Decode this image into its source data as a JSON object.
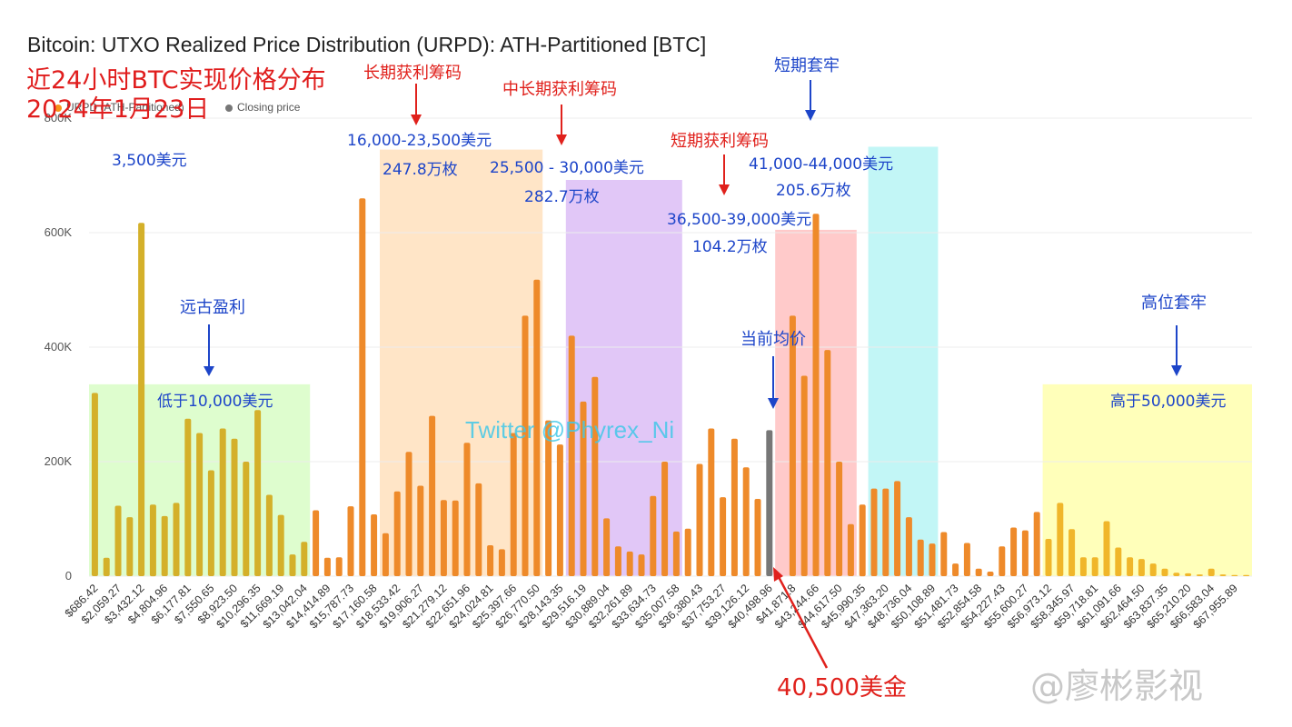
{
  "title": "Bitcoin: UTXO Realized Price Distribution (URPD): ATH-Partitioned [BTC]",
  "overlay_title_1": "近24小时BTC实现价格分布",
  "overlay_title_2": "2024年1月23日",
  "legend": [
    {
      "label": "URPD (ATH-Partitioned)",
      "color": "#f7931a"
    },
    {
      "label": "Closing price",
      "color": "#777777"
    }
  ],
  "annotations": {
    "ancient_value": "3,500美元",
    "ancient_profit_label": "远古盈利",
    "ancient_range": "低于10,000美元",
    "longterm_label": "长期获利筹码",
    "longterm_range": "16,000-23,500美元",
    "longterm_amount": "247.8万枚",
    "midlong_label": "中长期获利筹码",
    "midlong_range": "25,500 - 30,000美元",
    "midlong_amount": "282.7万枚",
    "shortterm_label": "短期获利筹码",
    "shortterm_range": "36,500-39,000美元",
    "shortterm_amount": "104.2万枚",
    "trapped_label": "短期套牢",
    "trapped_range": "41,000-44,000美元",
    "trapped_amount": "205.6万枚",
    "current_avg_label": "当前均价",
    "high_trapped_label": "高位套牢",
    "high_range": "高于50,000美元",
    "closing_price_label": "40,500美金"
  },
  "watermark": "Twitter @Phyrex_Ni",
  "logo_text": "@廖彬影视",
  "chart_data": {
    "type": "bar",
    "title": "Bitcoin: UTXO Realized Price Distribution (URPD): ATH-Partitioned [BTC]",
    "xlabel": "",
    "ylabel": "",
    "ylim": [
      0,
      800000
    ],
    "yticks": [
      0,
      200000,
      400000,
      600000,
      800000
    ],
    "ytick_labels": [
      "0",
      "200K",
      "400K",
      "600K",
      "800K"
    ],
    "xtick_labels": [
      "$686.42",
      "$2,059.27",
      "$3,432.12",
      "$4,804.96",
      "$6,177.81",
      "$7,550.65",
      "$8,923.50",
      "$10,296.35",
      "$11,669.19",
      "$13,042.04",
      "$14,414.89",
      "$15,787.73",
      "$17,160.58",
      "$18,533.42",
      "$19,906.27",
      "$21,279.12",
      "$22,651.96",
      "$24,024.81",
      "$25,397.66",
      "$26,770.50",
      "$28,143.35",
      "$29,516.19",
      "$30,889.04",
      "$32,261.89",
      "$33,634.73",
      "$35,007.58",
      "$36,380.43",
      "$37,753.27",
      "$39,126.12",
      "$40,498.96",
      "$41,871.8",
      "$43,244.66",
      "$44,617.50",
      "$45,990.35",
      "$47,363.20",
      "$48,736.04",
      "$50,108.89",
      "$51,481.73",
      "$52,854.58",
      "$54,227.43",
      "$55,600.27",
      "$56,973.12",
      "$58,345.97",
      "$59,718.81",
      "$61,091.66",
      "$62,464.50",
      "$63,837.35",
      "$65,210.20",
      "$66,583.04",
      "$67,955.89"
    ],
    "values": [
      320000,
      32000,
      123000,
      103000,
      617000,
      125000,
      105000,
      128000,
      275000,
      250000,
      185000,
      258000,
      240000,
      200000,
      290000,
      142000,
      107000,
      38000,
      60000,
      115000,
      32000,
      33000,
      122000,
      660000,
      108000,
      75000,
      148000,
      217000,
      158000,
      280000,
      133000,
      132000,
      233000,
      162000,
      54000,
      47000,
      250000,
      455000,
      518000,
      272000,
      230000,
      420000,
      305000,
      348000,
      101000,
      52000,
      43000,
      38000,
      140000,
      200000,
      78000,
      83000,
      196000,
      258000,
      138000,
      240000,
      190000,
      135000,
      255000,
      0,
      455000,
      350000,
      633000,
      395000,
      200000,
      91000,
      125000,
      153000,
      153000,
      166000,
      103000,
      64000,
      57000,
      77000,
      22000,
      58000,
      13000,
      8000,
      52000,
      85000,
      80000,
      112000,
      65000,
      128000,
      82000,
      33000,
      33000,
      96000,
      50000,
      33000,
      30000,
      22000,
      13000,
      6000,
      5000,
      3000,
      13000,
      3000,
      2000,
      2000
    ],
    "closing_price_index": 58,
    "series": [
      {
        "name": "URPD (ATH-Partitioned)",
        "color": "#f7931a"
      },
      {
        "name": "Closing price",
        "color": "#777777"
      }
    ],
    "colors": {
      "low": "#d4b02a",
      "mid": "#ee8a2a",
      "high": "#f0b62a",
      "closing": "#777777"
    },
    "highlight_regions": [
      {
        "name": "ancient",
        "from_index": 0,
        "to_index": 18,
        "ymax": 335000,
        "color": "#ccfcb4",
        "opacity": 0.65
      },
      {
        "name": "longterm",
        "from_index": 25,
        "to_index": 38,
        "ymax": 745000,
        "color": "#ffdcb4",
        "opacity": 0.75
      },
      {
        "name": "midlong",
        "from_index": 41,
        "to_index": 50,
        "ymax": 692000,
        "color": "#d1a9f2",
        "opacity": 0.65
      },
      {
        "name": "shortterm",
        "from_index": 59,
        "to_index": 65,
        "ymax": 605000,
        "color": "#ffb4b4",
        "opacity": 0.7
      },
      {
        "name": "trapped",
        "from_index": 67,
        "to_index": 72,
        "ymax": 750000,
        "color": "#9af0f0",
        "opacity": 0.6
      },
      {
        "name": "high",
        "from_index": 82,
        "to_index": 99,
        "ymax": 335000,
        "color": "#ffff8c",
        "opacity": 0.6
      }
    ],
    "legend_position": "top-left"
  }
}
